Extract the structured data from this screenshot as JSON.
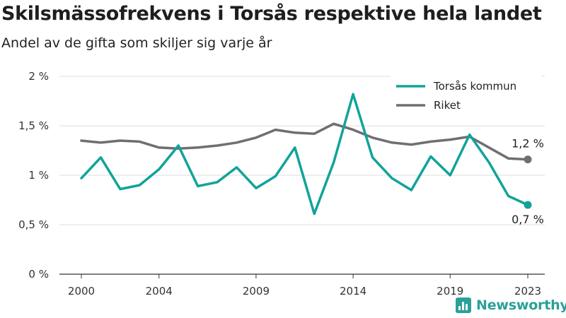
{
  "header": {
    "title": "Skilsmässofrekvens i Torsås respektive hela landet",
    "subtitle": "Andel av de gifta som skiljer sig varje år"
  },
  "brand": {
    "name": "Newsworthy",
    "icon": "bar-chart-logo-icon",
    "color": "#2aa198"
  },
  "chart_data": {
    "type": "line",
    "x": [
      2000,
      2001,
      2002,
      2003,
      2004,
      2005,
      2006,
      2007,
      2008,
      2009,
      2010,
      2011,
      2012,
      2013,
      2014,
      2015,
      2016,
      2017,
      2018,
      2019,
      2020,
      2021,
      2022,
      2023
    ],
    "series": [
      {
        "name": "Torsås kommun",
        "color": "#11a39a",
        "values": [
          0.97,
          1.18,
          0.86,
          0.9,
          1.06,
          1.3,
          0.89,
          0.93,
          1.08,
          0.87,
          0.99,
          1.28,
          0.61,
          1.13,
          1.82,
          1.18,
          0.97,
          0.85,
          1.19,
          1.0,
          1.41,
          1.13,
          0.79,
          0.7
        ]
      },
      {
        "name": "Riket",
        "color": "#6e6e73",
        "values": [
          1.35,
          1.33,
          1.35,
          1.34,
          1.28,
          1.27,
          1.28,
          1.3,
          1.33,
          1.38,
          1.46,
          1.43,
          1.42,
          1.52,
          1.46,
          1.38,
          1.33,
          1.31,
          1.34,
          1.36,
          1.39,
          1.28,
          1.17,
          1.16
        ]
      }
    ],
    "xticks": [
      2000,
      2004,
      2009,
      2014,
      2019,
      2023
    ],
    "yticks": [
      {
        "value": 0,
        "label": "0 %"
      },
      {
        "value": 0.5,
        "label": "0,5 %"
      },
      {
        "value": 1,
        "label": "1 %"
      },
      {
        "value": 1.5,
        "label": "1,5 %"
      },
      {
        "value": 2,
        "label": "2 %"
      }
    ],
    "ylim": [
      0,
      2
    ],
    "xlim": [
      2000,
      2023
    ],
    "grid": "horizontal",
    "legend_position": "top-right",
    "end_labels": {
      "Torsås kommun": "0,7 %",
      "Riket": "1,2 %"
    },
    "title": "",
    "xlabel": "",
    "ylabel": ""
  }
}
